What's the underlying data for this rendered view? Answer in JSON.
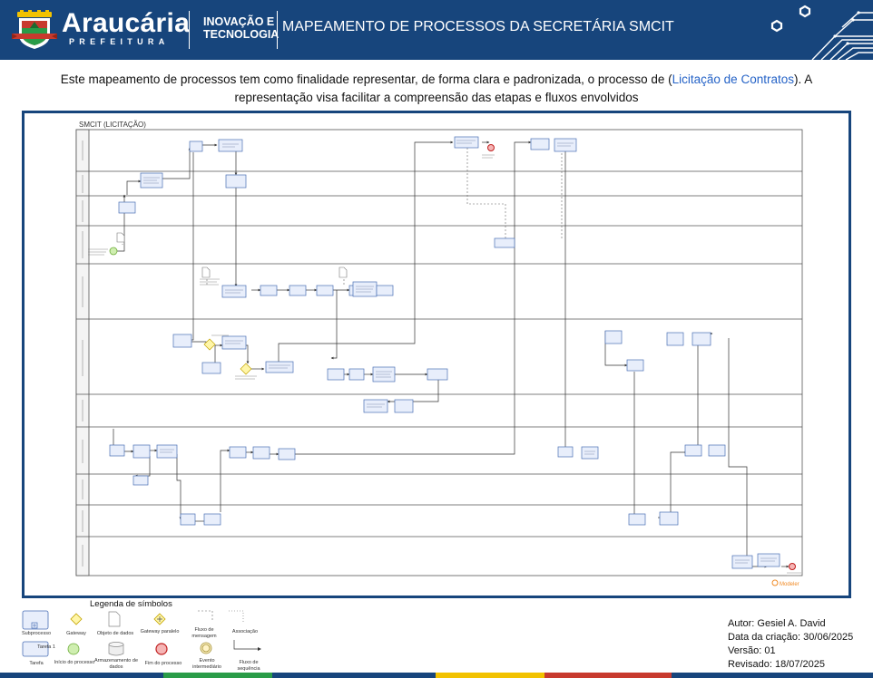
{
  "header": {
    "brand": "Araucária",
    "brand_sub": "PREFEITURA",
    "dept_line1": "INOVAÇÃO E",
    "dept_line2": "TECNOLOGIA",
    "title": "MAPEAMENTO DE PROCESSOS DA SECRETÁRIA SMCIT",
    "colors": {
      "header_bg": "#17457c",
      "accent": "#f2c200"
    }
  },
  "intro": {
    "text_before": "Este mapeamento de processos tem como finalidade representar, de forma clara e padronizada, o processo de (",
    "link_text": "Licitação de Contratos",
    "text_after": "). A representação visa facilitar a compreensão das etapas e fluxos envolvidos"
  },
  "diagram": {
    "pool_title": "SMCIT (LICITAÇÃO)",
    "watermark": "Modeler",
    "lanes": [
      "",
      "",
      "",
      "",
      "",
      "",
      "",
      "",
      "",
      "",
      "",
      ""
    ]
  },
  "legend": {
    "title": "Legenda de símbolos",
    "subprocess": "Subprocesso",
    "gateway": "Gateway",
    "data_object": "Objeto de dados",
    "parallel_gateway": "Gateway paralelo",
    "message_flow": "Fluxo de mensagem",
    "association": "Associação",
    "task": "Tarefa",
    "task_box": "Tarefa 1",
    "start": "Início do processo",
    "data_store": "Armazenamento de dados",
    "end": "Fim do processo",
    "intermediate": "Evento intermediário",
    "sequence_flow": "Fluxo de sequência"
  },
  "meta": {
    "author": "Autor: Gesiel A. David",
    "created": "Data da criação: 30/06/2025",
    "version": "Versão: 01",
    "revised": "Revisado: 18/07/2025"
  }
}
